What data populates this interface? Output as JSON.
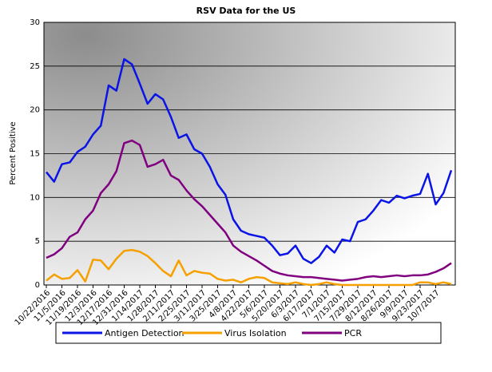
{
  "chart_data": {
    "type": "line",
    "title": "RSV Data for the US",
    "y_label": "Percent Positive",
    "categories": [
      "10/22/2016",
      null,
      "11/5/2016",
      null,
      "11/19/2016",
      null,
      "12/3/2016",
      null,
      "12/17/2016",
      null,
      "12/31/2016",
      null,
      "1/14/2017",
      null,
      "1/28/2017",
      null,
      "2/11/2017",
      null,
      "2/25/2017",
      null,
      "3/11/2017",
      null,
      "3/25/2017",
      null,
      "4/8/2017",
      null,
      "4/22/2017",
      null,
      "5/6/2017",
      null,
      "5/20/2017",
      null,
      "6/3/2017",
      null,
      "6/17/2017",
      null,
      "7/1/2017",
      null,
      "7/15/2017",
      null,
      "7/29/2017",
      null,
      "8/12/2017",
      null,
      "8/26/2017",
      null,
      "9/9/2017",
      null,
      "9/23/2017",
      null,
      "10/7/2017",
      null,
      null
    ],
    "series": [
      {
        "name": "Antigen Detection",
        "color": "#0a14e6",
        "values": [
          12.9,
          11.8,
          13.8,
          14.0,
          15.2,
          15.8,
          17.2,
          18.2,
          22.8,
          22.2,
          25.8,
          25.2,
          23.0,
          20.7,
          21.8,
          21.2,
          19.2,
          16.8,
          17.2,
          15.5,
          15.0,
          13.5,
          11.5,
          10.3,
          7.5,
          6.2,
          5.8,
          5.6,
          5.4,
          4.5,
          3.4,
          3.6,
          4.5,
          3.0,
          2.5,
          3.2,
          4.5,
          3.7,
          5.2,
          5.0,
          7.2,
          7.5,
          8.5,
          9.7,
          9.4,
          10.2,
          9.9,
          10.2,
          10.4,
          12.7,
          9.2,
          10.5,
          13.1
        ]
      },
      {
        "name": "Virus Isolation",
        "color": "#f5a000",
        "values": [
          0.5,
          1.2,
          0.7,
          0.8,
          1.7,
          0.4,
          2.9,
          2.8,
          1.8,
          3.0,
          3.9,
          4.0,
          3.8,
          3.3,
          2.5,
          1.6,
          1.0,
          2.8,
          1.1,
          1.6,
          1.4,
          1.3,
          0.7,
          0.5,
          0.6,
          0.3,
          0.7,
          0.9,
          0.8,
          0.3,
          0.2,
          0.1,
          0.3,
          0.1,
          0.0,
          0.1,
          0.3,
          0.1,
          0.0,
          0.0,
          0.0,
          0.0,
          0.0,
          0.0,
          0.0,
          0.0,
          0.0,
          0.0,
          0.3,
          0.3,
          0.1,
          0.3,
          0.1
        ]
      },
      {
        "name": "PCR",
        "color": "#800080",
        "values": [
          3.1,
          3.5,
          4.2,
          5.5,
          6.0,
          7.5,
          8.5,
          10.5,
          11.5,
          13.0,
          16.2,
          16.5,
          16.0,
          13.5,
          13.8,
          14.3,
          12.5,
          12.0,
          10.8,
          9.8,
          9.0,
          8.0,
          7.0,
          6.0,
          4.5,
          3.8,
          3.3,
          2.8,
          2.2,
          1.6,
          1.3,
          1.1,
          1.0,
          0.9,
          0.9,
          0.8,
          0.7,
          0.6,
          0.5,
          0.6,
          0.7,
          0.9,
          1.0,
          0.9,
          1.0,
          1.1,
          1.0,
          1.1,
          1.1,
          1.2,
          1.5,
          1.9,
          2.5
        ]
      }
    ],
    "ylim": [
      0,
      30
    ],
    "yticks": [
      0,
      5,
      10,
      15,
      20,
      25,
      30
    ],
    "grid": true
  }
}
